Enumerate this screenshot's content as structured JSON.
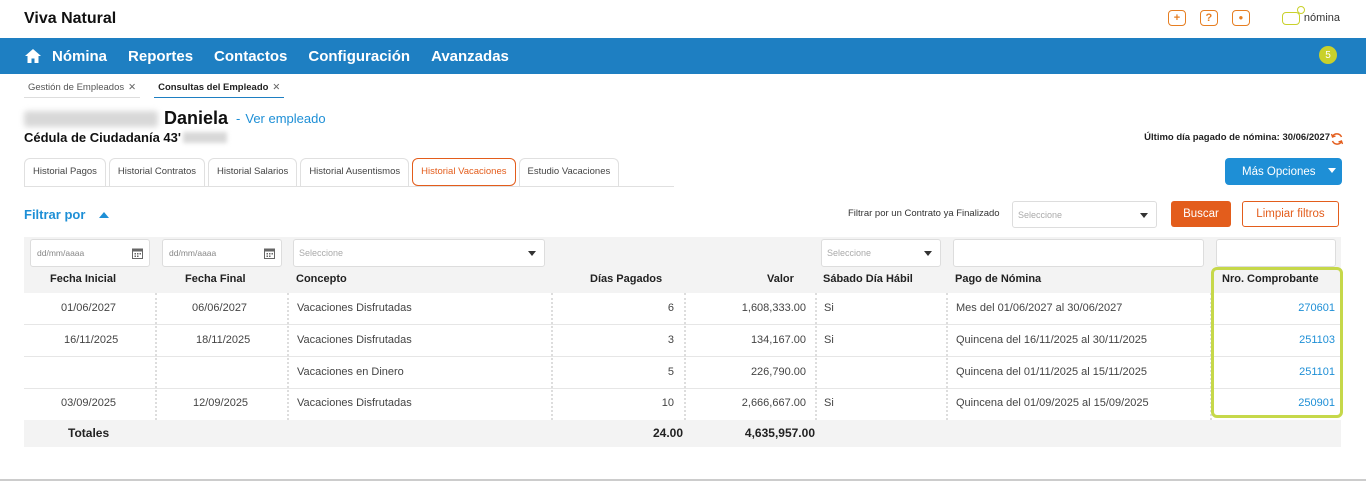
{
  "app": {
    "brand": "Viva Natural",
    "logo_text": "nómina"
  },
  "top_icons": [
    {
      "icon": "plus-icon",
      "glyph": "+"
    },
    {
      "icon": "help-icon",
      "glyph": "?"
    },
    {
      "icon": "user-icon",
      "glyph": "●"
    }
  ],
  "nav": {
    "items": [
      "Nómina",
      "Reportes",
      "Contactos",
      "Configuración",
      "Avanzadas"
    ],
    "badge": "5"
  },
  "open_tabs": [
    {
      "label": "Gestión de Empleados",
      "active": false
    },
    {
      "label": "Consultas del Empleado",
      "active": true
    }
  ],
  "employee": {
    "name": "Daniela",
    "view_link": "Ver empleado",
    "separator": "-",
    "id_label": "Cédula de Ciudadanía 43'",
    "last_paid": "Último día pagado de nómina: 30/06/2027"
  },
  "history_tabs": [
    {
      "label": "Historial Pagos",
      "active": false
    },
    {
      "label": "Historial Contratos",
      "active": false
    },
    {
      "label": "Historial Salarios",
      "active": false
    },
    {
      "label": "Historial Ausentismos",
      "active": false
    },
    {
      "label": "Historial Vacaciones",
      "active": true
    },
    {
      "label": "Estudio Vacaciones",
      "active": false
    }
  ],
  "more_options": "Más Opciones",
  "filters": {
    "title": "Filtrar por",
    "contract_label": "Filtrar por un Contrato ya Finalizado",
    "select_placeholder": "Seleccione",
    "date_placeholder": "dd/mm/aaaa",
    "search_button": "Buscar",
    "clear_button": "Limpiar filtros"
  },
  "table": {
    "headers": [
      "Fecha Inicial",
      "Fecha Final",
      "Concepto",
      "Días Pagados",
      "Valor",
      "Sábado Día Hábil",
      "Pago de Nómina",
      "Nro. Comprobante"
    ],
    "rows": [
      {
        "fecha_inicial": "01/06/2027",
        "fecha_final": "06/06/2027",
        "concepto": "Vacaciones Disfrutadas",
        "dias": "6",
        "valor": "1,608,333.00",
        "sabado": "Si",
        "pago": "Mes del 01/06/2027 al 30/06/2027",
        "comprobante": "270601"
      },
      {
        "fecha_inicial": "16/11/2025",
        "fecha_final": "18/11/2025",
        "concepto": "Vacaciones Disfrutadas",
        "dias": "3",
        "valor": "134,167.00",
        "sabado": "Si",
        "pago": "Quincena del 16/11/2025 al 30/11/2025",
        "comprobante": "251103"
      },
      {
        "fecha_inicial": "",
        "fecha_final": "",
        "concepto": "Vacaciones en Dinero",
        "dias": "5",
        "valor": "226,790.00",
        "sabado": "",
        "pago": "Quincena del 01/11/2025 al 15/11/2025",
        "comprobante": "251101"
      },
      {
        "fecha_inicial": "03/09/2025",
        "fecha_final": "12/09/2025",
        "concepto": "Vacaciones Disfrutadas",
        "dias": "10",
        "valor": "2,666,667.00",
        "sabado": "Si",
        "pago": "Quincena del 01/09/2025 al 15/09/2025",
        "comprobante": "250901"
      }
    ],
    "totals": {
      "label": "Totales",
      "dias": "24.00",
      "valor": "4,635,957.00"
    }
  },
  "colors": {
    "nav": "#1e7fc2",
    "accent": "#e35d1c",
    "link": "#1e8fd6",
    "highlight": "#c6d84a"
  }
}
